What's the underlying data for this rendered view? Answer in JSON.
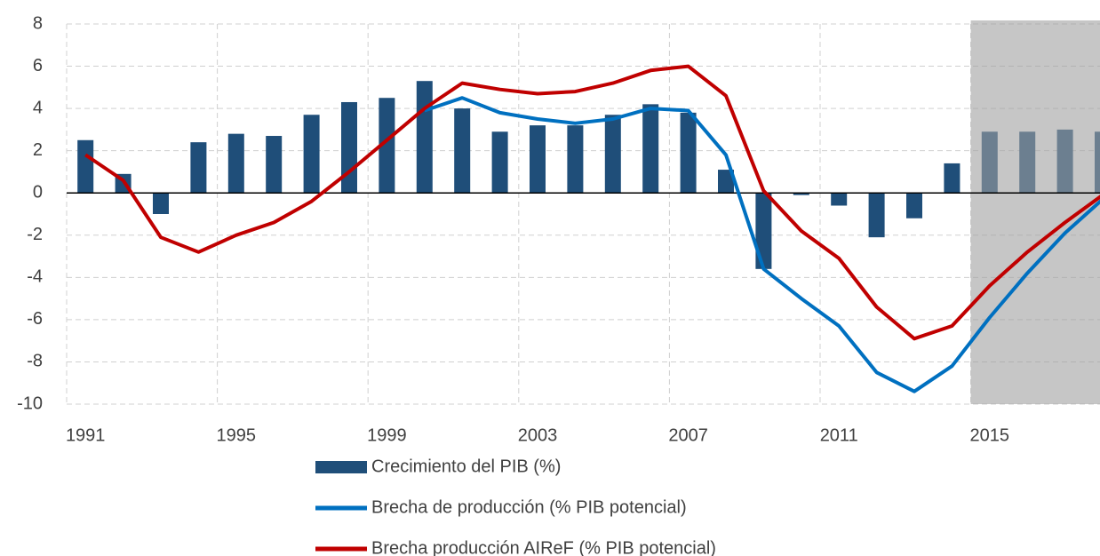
{
  "chart_data": {
    "type": "bar-line",
    "categories": [
      "1991",
      null,
      null,
      null,
      "1995",
      null,
      null,
      null,
      "1999",
      null,
      null,
      null,
      "2003",
      null,
      null,
      null,
      "2007",
      null,
      null,
      null,
      "2011",
      null,
      null,
      null,
      "2015",
      null,
      null,
      null
    ],
    "series": [
      {
        "name": "Crecimiento del PIB (%)",
        "type": "bar",
        "color": "#1f4e79",
        "values": [
          2.5,
          0.9,
          -1.0,
          2.4,
          2.8,
          2.7,
          3.7,
          4.3,
          4.5,
          5.3,
          4.0,
          2.9,
          3.2,
          3.2,
          3.7,
          4.2,
          3.8,
          1.1,
          -3.6,
          -0.1,
          -0.6,
          -2.1,
          -1.2,
          1.4,
          2.9,
          2.9,
          3.0,
          2.9
        ]
      },
      {
        "name": "Brecha de producción (% PIB potencial)",
        "type": "line",
        "color": "#0070c0",
        "values": [
          null,
          null,
          null,
          null,
          null,
          null,
          null,
          null,
          null,
          3.9,
          4.5,
          3.8,
          3.5,
          3.3,
          3.5,
          4.0,
          3.9,
          1.8,
          -3.6,
          -5.0,
          -6.3,
          -8.5,
          -9.4,
          -8.2,
          -5.9,
          -3.8,
          -1.9,
          -0.3
        ]
      },
      {
        "name": "Brecha producción AIReF (% PIB potencial)",
        "type": "line",
        "color": "#c00000",
        "values": [
          1.8,
          0.6,
          -2.1,
          -2.8,
          -2.0,
          -1.4,
          -0.4,
          1.0,
          2.5,
          4.0,
          5.2,
          4.9,
          4.7,
          4.8,
          5.2,
          5.8,
          6.0,
          4.6,
          0.1,
          -1.8,
          -3.1,
          -5.4,
          -6.9,
          -6.3,
          -4.4,
          -2.8,
          -1.4,
          -0.1
        ]
      }
    ],
    "ylim": [
      -10,
      8
    ],
    "yticks": [
      -10,
      -8,
      -6,
      -4,
      -2,
      0,
      2,
      4,
      6,
      8
    ],
    "grid": true
  }
}
